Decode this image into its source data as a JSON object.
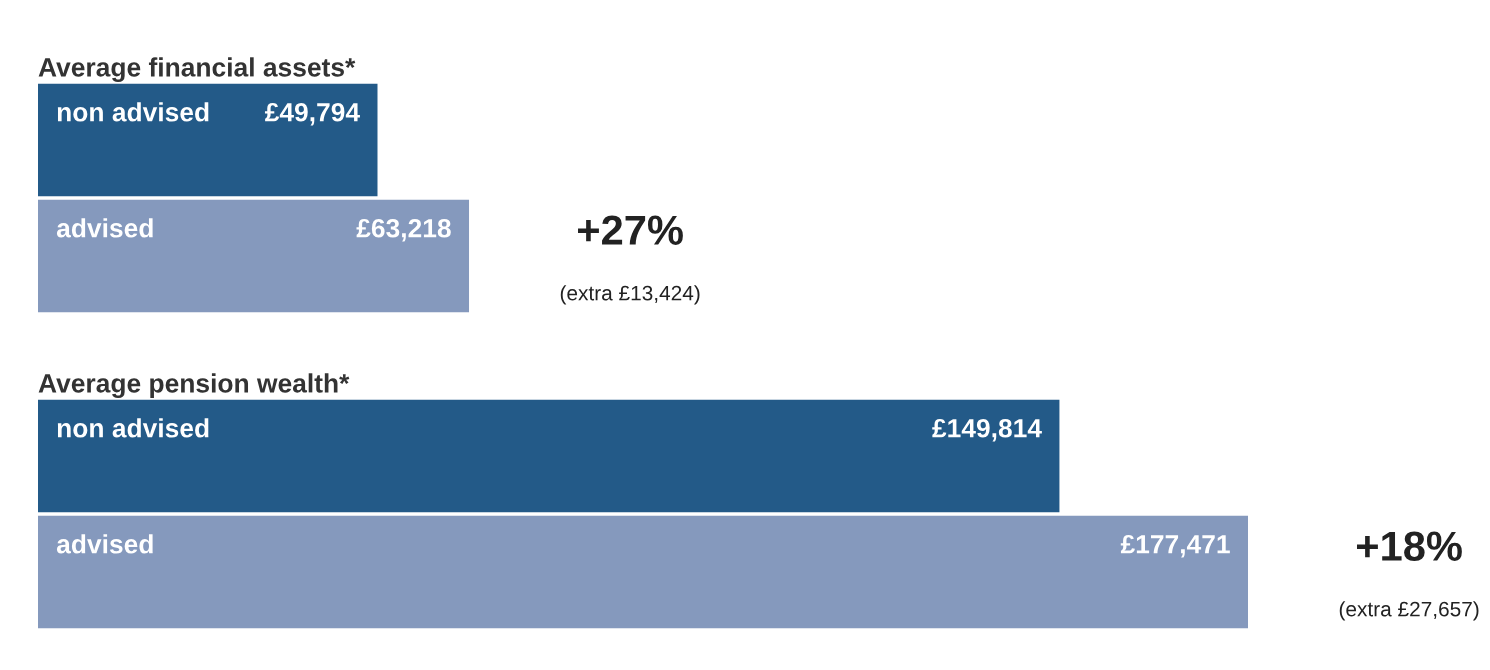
{
  "chart_data": [
    {
      "type": "bar",
      "orientation": "horizontal",
      "title": "Average financial assets*",
      "categories": [
        "non advised",
        "advised"
      ],
      "values": [
        49794,
        63218
      ],
      "colors": [
        "#235a88",
        "#8599bd"
      ],
      "value_labels": [
        "£49,794",
        "£63,218"
      ],
      "annotations": [
        "+27%",
        "(extra £13,424)"
      ],
      "tick_labels": false
    },
    {
      "type": "bar",
      "orientation": "horizontal",
      "title": "Average pension wealth*",
      "categories": [
        "non advised",
        "advised"
      ],
      "values": [
        149814,
        177471
      ],
      "colors": [
        "#235a88",
        "#8599bd"
      ],
      "value_labels": [
        "£149,814",
        "£177,471"
      ],
      "annotations": [
        "+18%",
        "(extra £27,657)"
      ],
      "tick_labels": false
    }
  ]
}
